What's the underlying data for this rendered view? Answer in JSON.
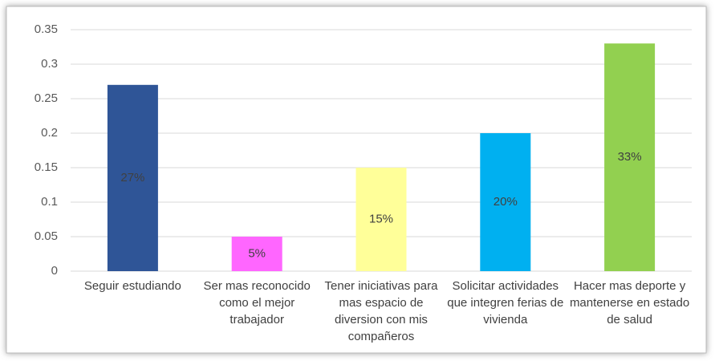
{
  "chart_data": {
    "type": "bar",
    "categories": [
      "Seguir estudiando",
      "Ser mas reconocido como el mejor trabajador",
      "Tener iniciativas para mas espacio de diversion con mis compañeros",
      "Solicitar actividades que integren ferias de vivienda",
      "Hacer mas deporte y mantenerse en estado de salud"
    ],
    "values": [
      0.27,
      0.05,
      0.15,
      0.2,
      0.33
    ],
    "value_labels": [
      "27%",
      "5%",
      "15%",
      "20%",
      "33%"
    ],
    "colors": [
      "#2f5597",
      "#ff66ff",
      "#ffff99",
      "#00b0f0",
      "#92d050"
    ],
    "ylim": [
      0,
      0.35
    ],
    "yticks": [
      0,
      0.05,
      0.1,
      0.15,
      0.2,
      0.25,
      0.3,
      0.35
    ],
    "grid": true
  }
}
